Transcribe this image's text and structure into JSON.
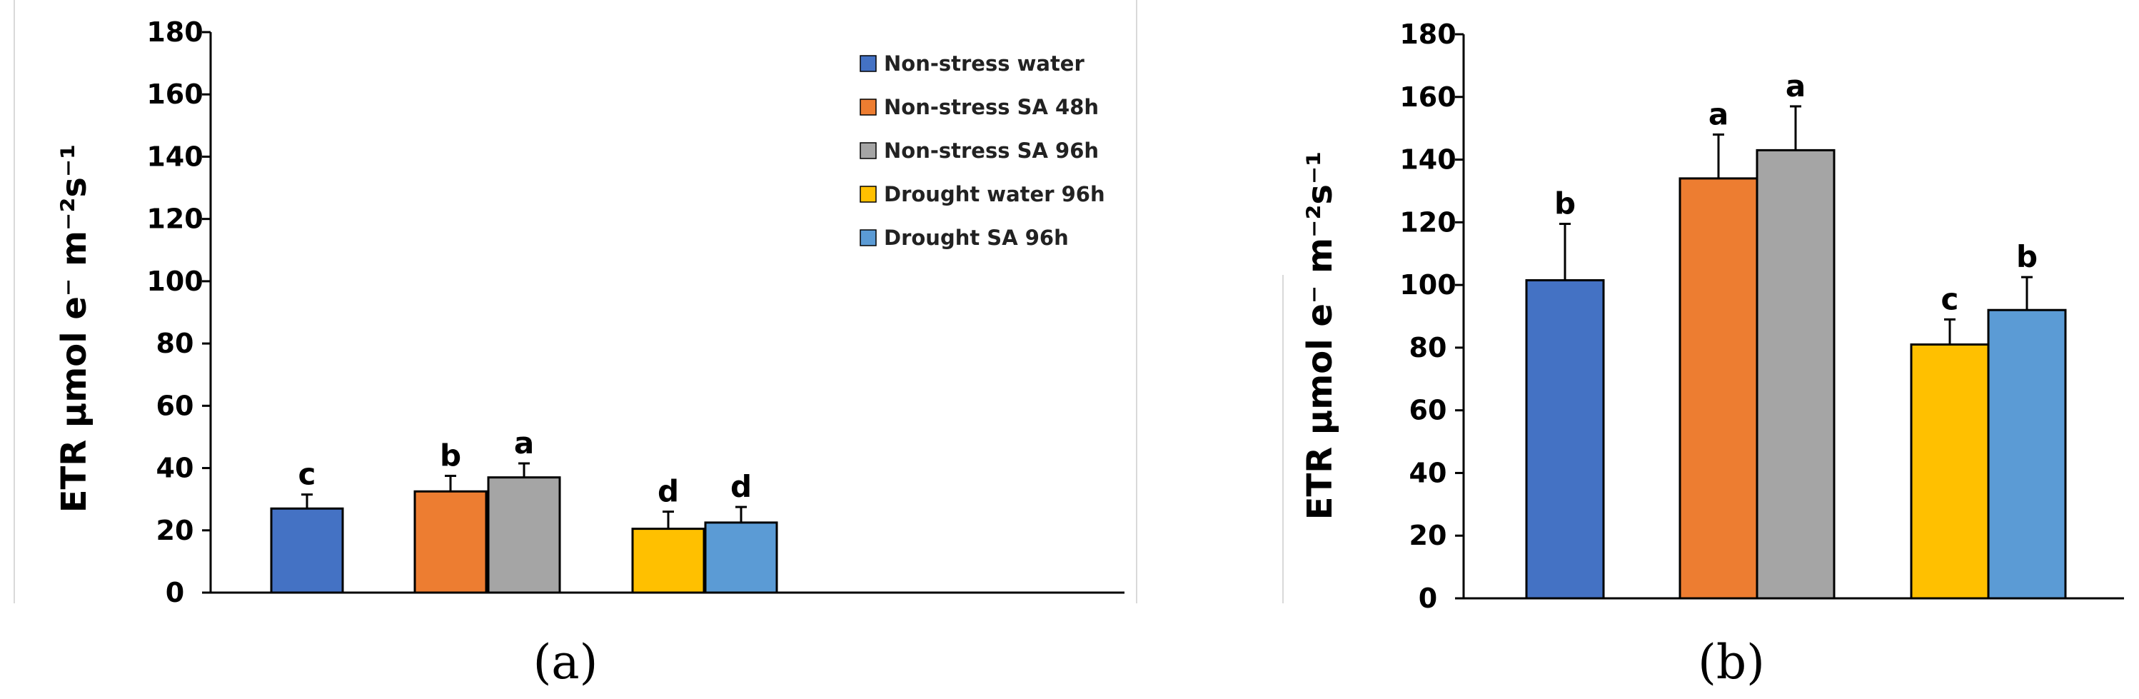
{
  "legend": {
    "entries": [
      {
        "label": "Non-stress water",
        "color": "#4472C4"
      },
      {
        "label": "Non-stress SA 48h",
        "color": "#ED7D31"
      },
      {
        "label": "Non-stress SA 96h",
        "color": "#A5A5A5"
      },
      {
        "label": "Drought water 96h",
        "color": "#FFC000"
      },
      {
        "label": "Drought SA 96h",
        "color": "#5B9BD5"
      }
    ]
  },
  "chart_data": [
    {
      "type": "bar",
      "panel_label": "(a)",
      "ylabel": "ETR µmol e⁻ m⁻²s⁻¹",
      "ylim": [
        0,
        180
      ],
      "yticks": [
        0,
        20,
        40,
        60,
        80,
        100,
        120,
        140,
        160,
        180
      ],
      "series": [
        {
          "name": "Non-stress water",
          "value": 27,
          "error": 4.5,
          "letter": "c"
        },
        {
          "name": "Non-stress SA 48h",
          "value": 32.5,
          "error": 5,
          "letter": "b"
        },
        {
          "name": "Non-stress SA 96h",
          "value": 37,
          "error": 4.5,
          "letter": "a"
        },
        {
          "name": "Drought water 96h",
          "value": 20.5,
          "error": 5.5,
          "letter": "d"
        },
        {
          "name": "Drought SA 96h",
          "value": 22.5,
          "error": 5,
          "letter": "d"
        }
      ]
    },
    {
      "type": "bar",
      "panel_label": "(b)",
      "ylabel": "ETR µmol e⁻ m⁻²s⁻¹",
      "ylim": [
        0,
        180
      ],
      "yticks": [
        0,
        20,
        40,
        60,
        80,
        100,
        120,
        140,
        160,
        180
      ],
      "series": [
        {
          "name": "Non-stress water",
          "value": 101.5,
          "error": 18,
          "letter": "b"
        },
        {
          "name": "Non-stress SA 48h",
          "value": 134,
          "error": 14,
          "letter": "a"
        },
        {
          "name": "Non-stress SA 96h",
          "value": 143,
          "error": 14,
          "letter": "a"
        },
        {
          "name": "Drought water 96h",
          "value": 81,
          "error": 8,
          "letter": "c"
        },
        {
          "name": "Drought SA 96h",
          "value": 92,
          "error": 10.5,
          "letter": "b"
        }
      ]
    }
  ]
}
